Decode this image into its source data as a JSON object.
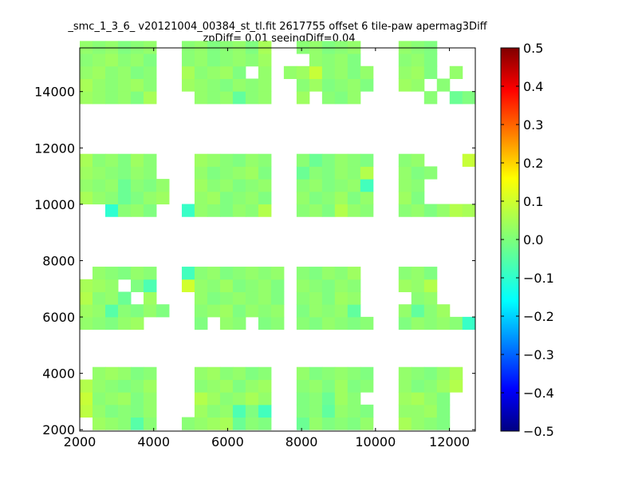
{
  "chart_data": {
    "type": "heatmap",
    "title_line1": "_smc_1_3_6_ v20121004_00384_st_tl.fit 2617755 offset 6 tile-paw apermag3Diff",
    "title_line2": "zpDiff= 0.01 seeingDiff=0.04",
    "xlabel": "",
    "ylabel": "",
    "xlim": [
      2000,
      12700
    ],
    "ylim": [
      1950,
      15550
    ],
    "xticks": [
      "2000",
      "4000",
      "6000",
      "8000",
      "10000",
      "12000"
    ],
    "yticks": [
      "2000",
      "4000",
      "6000",
      "8000",
      "10000",
      "12000",
      "14000"
    ],
    "colorbar": {
      "colormap": "jet",
      "range": [
        -0.5,
        0.5
      ],
      "ticks": [
        "0.5",
        "0.4",
        "0.3",
        "0.2",
        "0.1",
        "0.0",
        "−0.1",
        "−0.2",
        "−0.3",
        "−0.4",
        "−0.5"
      ]
    },
    "grid": false,
    "cell_size": [
      345,
      445
    ],
    "x_bins": [
      2000,
      2345,
      2690,
      3035,
      3380,
      3725,
      4070,
      4415,
      4760,
      5105,
      5450,
      5795,
      6140,
      6485,
      6830,
      7175,
      7520,
      7865,
      8210,
      8555,
      8900,
      9245,
      9590,
      9935,
      10280,
      10625,
      10970,
      11315,
      11660,
      12005,
      12350
    ],
    "y_bins": [
      2000,
      2445,
      2890,
      3335,
      3780,
      4225,
      4670,
      5115,
      5560,
      6005,
      6450,
      6895,
      7340,
      7785,
      8230,
      8675,
      9120,
      9565,
      10010,
      10455,
      10900,
      11345,
      11790,
      12235,
      12680,
      13125,
      13570,
      14015,
      14460,
      14905,
      15350
    ],
    "values_by_row": [
      [
        "",
        0.03,
        0.02,
        0.01,
        -0.04,
        0.01,
        "",
        "",
        0.01,
        0.02,
        0.03,
        0.04,
        -0.02,
        0.01,
        0.0,
        "",
        "",
        -0.02,
        0.02,
        0.0,
        0.01,
        0.0,
        0.02,
        "",
        "",
        0.04,
        0.02,
        0.01,
        0.0,
        "",
        ""
      ],
      [
        0.06,
        0.02,
        0.0,
        0.01,
        0.0,
        0.02,
        "",
        "",
        "",
        0.03,
        0.01,
        0.02,
        -0.05,
        0.0,
        -0.06,
        "",
        "",
        0.0,
        0.01,
        -0.03,
        0.02,
        0.01,
        0.0,
        "",
        "",
        0.02,
        0.02,
        0.03,
        0.0,
        "",
        ""
      ],
      [
        0.07,
        0.01,
        0.02,
        0.03,
        0.0,
        0.02,
        "",
        "",
        "",
        0.05,
        0.03,
        0.01,
        0.02,
        0.04,
        0.02,
        "",
        "",
        0.0,
        0.01,
        -0.02,
        0.03,
        0.01,
        "",
        "",
        "",
        0.03,
        0.04,
        0.02,
        0.0,
        "",
        ""
      ],
      [
        0.05,
        0.02,
        0.01,
        0.0,
        0.01,
        0.03,
        "",
        "",
        "",
        0.01,
        0.02,
        0.03,
        0.0,
        0.02,
        0.03,
        "",
        "",
        0.01,
        0.02,
        0.0,
        0.03,
        0.0,
        0.01,
        "",
        "",
        0.02,
        0.0,
        0.01,
        0.03,
        0.05,
        ""
      ],
      [
        "",
        0.02,
        0.03,
        0.02,
        0.0,
        0.01,
        "",
        "",
        "",
        0.02,
        0.03,
        0.01,
        0.02,
        0.0,
        0.01,
        "",
        "",
        0.02,
        0.0,
        0.01,
        0.02,
        0.01,
        0.0,
        "",
        "",
        0.02,
        0.01,
        0.0,
        0.02,
        0.04,
        ""
      ],
      [
        "",
        "",
        "",
        "",
        "",
        "",
        "",
        "",
        "",
        "",
        "",
        "",
        "",
        "",
        "",
        "",
        "",
        "",
        "",
        "",
        "",
        "",
        "",
        "",
        "",
        "",
        "",
        "",
        "",
        "",
        ""
      ],
      [
        "",
        "",
        "",
        "",
        "",
        "",
        "",
        "",
        "",
        "",
        "",
        "",
        "",
        "",
        "",
        "",
        "",
        "",
        "",
        "",
        "",
        "",
        "",
        "",
        "",
        "",
        "",
        "",
        "",
        "",
        ""
      ],
      [
        "",
        "",
        "",
        "",
        "",
        "",
        "",
        "",
        "",
        "",
        "",
        "",
        "",
        "",
        "",
        "",
        "",
        "",
        "",
        "",
        "",
        "",
        "",
        "",
        "",
        "",
        "",
        "",
        "",
        "",
        ""
      ],
      [
        0.02,
        0.01,
        0.0,
        0.02,
        0.03,
        "",
        "",
        "",
        "",
        0.0,
        "",
        0.02,
        0.01,
        "",
        0.0,
        0.01,
        "",
        0.01,
        0.0,
        0.02,
        0.01,
        0.0,
        0.01,
        "",
        "",
        0.0,
        0.02,
        0.01,
        0.02,
        0.01,
        -0.07
      ],
      [
        0.03,
        0.02,
        -0.04,
        0.01,
        0.0,
        0.02,
        0.0,
        "",
        "",
        0.01,
        0.02,
        0.03,
        0.0,
        0.02,
        0.01,
        0.02,
        "",
        0.0,
        0.02,
        0.01,
        0.02,
        -0.03,
        "",
        "",
        "",
        0.02,
        -0.03,
        0.01,
        0.03,
        "",
        ""
      ],
      [
        0.05,
        0.01,
        0.02,
        -0.02,
        "",
        0.03,
        "",
        "",
        "",
        0.02,
        0.0,
        0.01,
        0.02,
        0.01,
        0.02,
        0.0,
        "",
        0.01,
        0.02,
        0.0,
        0.03,
        0.02,
        "",
        "",
        "",
        "",
        0.01,
        0.02,
        "",
        "",
        ""
      ],
      [
        0.04,
        0.03,
        0.02,
        "",
        0.0,
        -0.05,
        "",
        "",
        0.08,
        0.02,
        0.01,
        0.03,
        0.0,
        0.01,
        0.02,
        0.0,
        "",
        0.02,
        0.01,
        0.0,
        0.02,
        0.01,
        "",
        "",
        "",
        0.03,
        0.02,
        0.05,
        "",
        "",
        ""
      ],
      [
        "",
        0.02,
        0.01,
        0.0,
        0.02,
        0.01,
        "",
        "",
        -0.06,
        0.01,
        0.02,
        0.0,
        0.01,
        0.02,
        0.01,
        0.02,
        "",
        0.01,
        0.0,
        0.02,
        0.01,
        0.03,
        "",
        "",
        "",
        0.01,
        0.02,
        0.0,
        "",
        "",
        ""
      ],
      [
        "",
        "",
        "",
        "",
        "",
        "",
        "",
        "",
        "",
        "",
        "",
        "",
        "",
        "",
        "",
        "",
        "",
        "",
        "",
        "",
        "",
        "",
        "",
        "",
        "",
        "",
        "",
        "",
        "",
        "",
        ""
      ],
      [
        "",
        "",
        "",
        "",
        "",
        "",
        "",
        "",
        "",
        "",
        "",
        "",
        "",
        "",
        "",
        "",
        "",
        "",
        "",
        "",
        "",
        "",
        "",
        "",
        "",
        "",
        "",
        "",
        "",
        "",
        ""
      ],
      [
        "",
        "",
        "",
        "",
        "",
        "",
        "",
        "",
        "",
        "",
        "",
        "",
        "",
        "",
        "",
        "",
        "",
        "",
        "",
        "",
        "",
        "",
        "",
        "",
        "",
        "",
        "",
        "",
        "",
        "",
        ""
      ],
      [
        "",
        "",
        "",
        "",
        "",
        "",
        "",
        "",
        "",
        "",
        "",
        "",
        "",
        "",
        "",
        "",
        "",
        "",
        "",
        "",
        "",
        "",
        "",
        "",
        "",
        "",
        "",
        "",
        "",
        "",
        ""
      ],
      [
        "",
        "",
        -0.08,
        0.01,
        0.02,
        0.0,
        "",
        "",
        -0.07,
        0.02,
        0.01,
        0.0,
        0.02,
        0.01,
        0.05,
        "",
        "",
        0.01,
        0.02,
        0.0,
        0.05,
        0.02,
        0.01,
        "",
        "",
        0.01,
        0.02,
        0.0,
        0.02,
        0.05,
        0.04
      ],
      [
        0.04,
        0.02,
        0.01,
        -0.02,
        0.0,
        0.02,
        0.03,
        "",
        "",
        0.02,
        0.03,
        0.0,
        0.01,
        0.02,
        0.0,
        "",
        "",
        0.02,
        0.0,
        0.01,
        0.03,
        0.0,
        0.02,
        "",
        "",
        0.03,
        0.0,
        "",
        "",
        "",
        ""
      ],
      [
        0.02,
        0.01,
        0.02,
        -0.02,
        0.01,
        0.0,
        0.02,
        "",
        "",
        0.03,
        0.01,
        0.02,
        0.0,
        0.01,
        0.02,
        "",
        "",
        0.01,
        0.02,
        0.0,
        0.01,
        0.02,
        -0.06,
        "",
        "",
        0.02,
        0.01,
        "",
        "",
        "",
        ""
      ],
      [
        0.03,
        0.02,
        0.01,
        0.0,
        0.02,
        0.01,
        "",
        "",
        "",
        0.02,
        0.0,
        0.01,
        0.02,
        0.03,
        0.0,
        "",
        "",
        -0.02,
        0.01,
        0.0,
        0.02,
        0.01,
        0.05,
        "",
        "",
        0.02,
        0.0,
        0.01,
        "",
        "",
        ""
      ],
      [
        0.04,
        0.01,
        0.02,
        0.0,
        0.03,
        0.01,
        "",
        "",
        "",
        0.03,
        0.02,
        0.01,
        0.0,
        0.02,
        0.01,
        "",
        "",
        0.01,
        -0.02,
        0.0,
        0.02,
        0.01,
        0.0,
        "",
        "",
        0.01,
        0.02,
        "",
        "",
        "",
        0.07
      ],
      [
        "",
        "",
        "",
        "",
        "",
        "",
        "",
        "",
        "",
        "",
        "",
        "",
        "",
        "",
        "",
        "",
        "",
        "",
        "",
        "",
        "",
        "",
        "",
        "",
        "",
        "",
        "",
        "",
        "",
        "",
        ""
      ],
      [
        "",
        "",
        "",
        "",
        "",
        "",
        "",
        "",
        "",
        "",
        "",
        "",
        "",
        "",
        "",
        "",
        "",
        "",
        "",
        "",
        "",
        "",
        "",
        "",
        "",
        "",
        "",
        "",
        "",
        "",
        ""
      ],
      [
        "",
        "",
        "",
        "",
        "",
        "",
        "",
        "",
        "",
        "",
        "",
        "",
        "",
        "",
        "",
        "",
        "",
        "",
        "",
        "",
        "",
        "",
        "",
        "",
        "",
        "",
        "",
        "",
        "",
        "",
        ""
      ],
      [
        "",
        "",
        "",
        "",
        "",
        "",
        "",
        "",
        "",
        "",
        "",
        "",
        "",
        "",
        "",
        "",
        "",
        "",
        "",
        "",
        "",
        "",
        "",
        "",
        "",
        "",
        "",
        "",
        "",
        "",
        ""
      ],
      [
        0.03,
        0.02,
        0.01,
        0.02,
        0.0,
        0.04,
        "",
        "",
        "",
        0.02,
        0.01,
        0.02,
        -0.03,
        0.01,
        0.02,
        "",
        "",
        0.03,
        "",
        0.01,
        0.0,
        0.02,
        "",
        "",
        "",
        "",
        "",
        0.01,
        "",
        -0.02,
        0.0
      ],
      [
        0.04,
        0.02,
        0.01,
        0.02,
        0.03,
        0.01,
        "",
        "",
        0.03,
        0.02,
        0.01,
        0.0,
        0.02,
        0.01,
        0.02,
        "",
        "",
        0.01,
        0.03,
        0.0,
        0.01,
        0.02,
        0.0,
        "",
        "",
        0.03,
        0.02,
        "",
        0.01,
        "",
        ""
      ],
      [
        0.02,
        0.03,
        0.01,
        0.02,
        0.0,
        0.01,
        "",
        "",
        0.04,
        0.01,
        0.02,
        0.03,
        0.0,
        "",
        0.02,
        "",
        0.02,
        0.03,
        0.07,
        0.01,
        0.02,
        0.0,
        0.02,
        "",
        "",
        0.02,
        0.03,
        0.0,
        "",
        0.02,
        ""
      ],
      [
        0.01,
        0.02,
        0.03,
        0.01,
        0.02,
        0.0,
        "",
        "",
        0.01,
        0.02,
        0.0,
        0.01,
        0.02,
        0.01,
        0.03,
        "",
        "",
        "",
        0.02,
        0.01,
        0.02,
        0.0,
        "",
        "",
        "",
        0.01,
        0.02,
        0.0,
        "",
        "",
        ""
      ],
      [
        0.02,
        0.01,
        0.02,
        0.0,
        0.01,
        0.02,
        "",
        "",
        0.01,
        0.02,
        0.0,
        0.01,
        0.02,
        0.0,
        0.04,
        "",
        "",
        0.01,
        0.02,
        0.0,
        0.01,
        0.02,
        "",
        "",
        "",
        0.02,
        0.01,
        0.0,
        "",
        "",
        ""
      ]
    ]
  }
}
